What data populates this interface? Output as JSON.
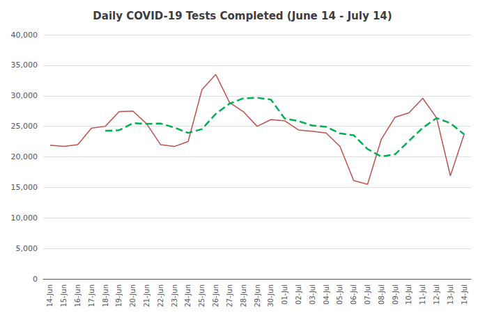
{
  "chart_data": {
    "type": "line",
    "title": "Daily COVID-19 Tests Completed (June 14 - July 14)",
    "categories": [
      "14-Jun",
      "15-Jun",
      "16-Jun",
      "17-Jun",
      "18-Jun",
      "19-Jun",
      "20-Jun",
      "21-Jun",
      "22-Jun",
      "23-Jun",
      "24-Jun",
      "25-Jun",
      "26-Jun",
      "27-Jun",
      "28-Jun",
      "29-Jun",
      "30-Jun",
      "01-Jul",
      "02-Jul",
      "03-Jul",
      "04-Jul",
      "05-Jul",
      "06-Jul",
      "07-Jul",
      "08-Jul",
      "09-Jul",
      "10-Jul",
      "11-Jul",
      "12-Jul",
      "13-Jul",
      "14-Jul"
    ],
    "series": [
      {
        "color": "#C0504D",
        "line_style": "solid",
        "values": [
          21900,
          21700,
          22000,
          24700,
          25000,
          27400,
          27500,
          25400,
          22000,
          21700,
          22500,
          31000,
          33500,
          28900,
          27400,
          25000,
          26100,
          25900,
          24400,
          24200,
          23900,
          21700,
          16100,
          15500,
          22900,
          26500,
          27200,
          29600,
          26400,
          16900,
          23700
        ]
      },
      {
        "color": "#00B050",
        "line_style": "dashed",
        "values": [
          null,
          null,
          null,
          null,
          24260,
          24360,
          25520,
          25400,
          25460,
          24800,
          23920,
          24540,
          27040,
          28720,
          29580,
          29680,
          29380,
          26260,
          25860,
          25120,
          24920,
          23840,
          23540,
          21280,
          20040,
          20420,
          22620,
          24740,
          26360,
          25520,
          23680
        ]
      }
    ],
    "ylim": [
      0,
      40000
    ],
    "yticks": [
      0,
      {
        "value": 5000,
        "label": "5,000"
      },
      {
        "value": 10000,
        "label": "10,000"
      },
      {
        "value": 15000,
        "label": "15,000"
      },
      {
        "value": 20000,
        "label": "20,000"
      },
      {
        "value": 25000,
        "label": "25,000"
      },
      {
        "value": 30000,
        "label": "30,000"
      },
      {
        "value": 35000,
        "label": "35,000"
      },
      {
        "value": 40000,
        "label": "40,000"
      }
    ],
    "grid": true
  }
}
